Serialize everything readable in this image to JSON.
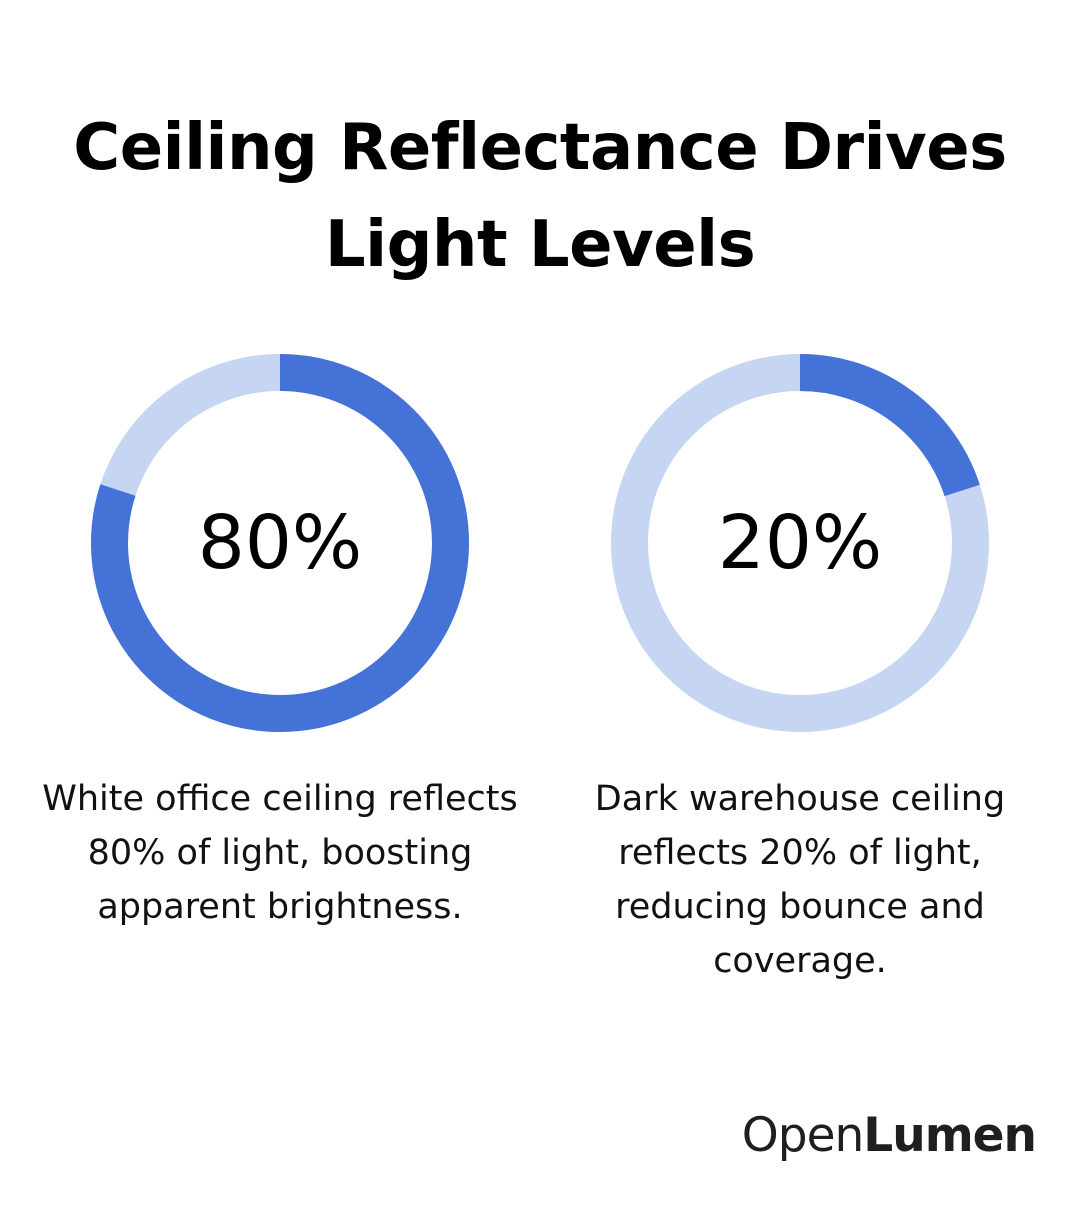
{
  "colors": {
    "accent": "#4472d6",
    "track": "#c5d5f2",
    "text": "#000000"
  },
  "chart_data": {
    "type": "pie",
    "title": "Ceiling Reflectance Drives Light Levels",
    "charts": [
      {
        "value": 80,
        "max": 100,
        "label": "80%",
        "caption": "White office ceiling reflects 80% of light, boosting apparent brightness."
      },
      {
        "value": 20,
        "max": 100,
        "label": "20%",
        "caption": "Dark warehouse ceiling reflects 20% of light, reducing bounce and coverage."
      }
    ]
  },
  "brand": {
    "logo_part1": "Open",
    "logo_part2": "Lumen"
  }
}
